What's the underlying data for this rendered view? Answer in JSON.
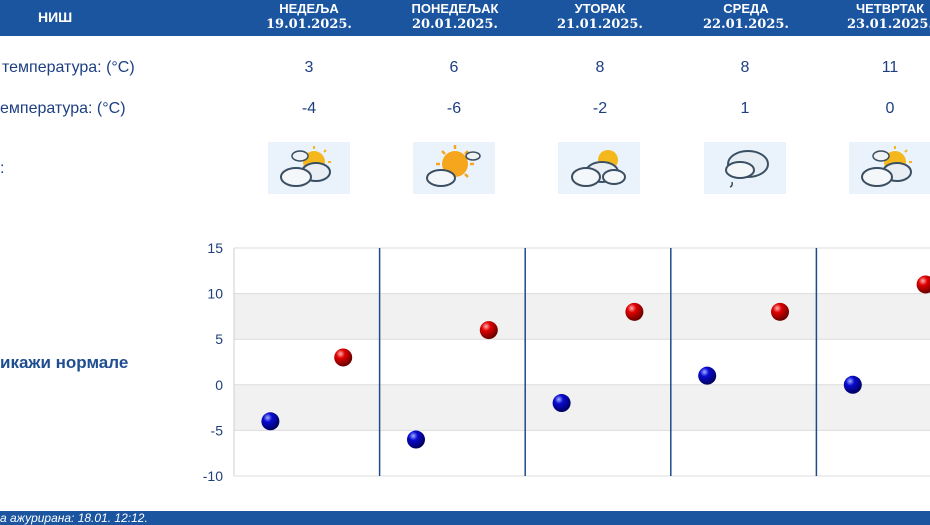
{
  "header": {
    "city": "НИШ",
    "days": [
      {
        "name": "НЕДЕЉА",
        "date": "19.01.2025."
      },
      {
        "name": "ПОНЕДЕЉАК",
        "date": "20.01.2025."
      },
      {
        "name": "УТОРАК",
        "date": "21.01.2025."
      },
      {
        "name": "СРЕДА",
        "date": "22.01.2025."
      },
      {
        "name": "ЧЕТВРТАК",
        "date": "23.01.2025."
      }
    ]
  },
  "rows": {
    "max_label": "температура: (°C)",
    "min_label": "емпература: (°C)",
    "icon_label": ":",
    "max_values": [
      "3",
      "6",
      "8",
      "8",
      "11"
    ],
    "min_values": [
      "-4",
      "-6",
      "-2",
      "1",
      "0"
    ],
    "icons": [
      "partly-cloudy-icon",
      "sunny-partly-cloudy-icon",
      "partly-cloudy-icon",
      "cloudy-light-rain-icon",
      "partly-cloudy-icon"
    ]
  },
  "normals_link": "икажи нормале",
  "footer": {
    "updated": "а ажурирана:  18.01.  12:12."
  },
  "chart_data": {
    "type": "scatter",
    "categories": [
      "НЕДЕЉА",
      "ПОНЕДЕЉАК",
      "УТОРАК",
      "СРЕДА",
      "ЧЕТВРТАК"
    ],
    "series": [
      {
        "values": [
          3,
          6,
          8,
          8,
          11
        ],
        "color": "#cc0000"
      },
      {
        "values": [
          -4,
          -6,
          -2,
          1,
          0
        ],
        "color": "#0000b0"
      }
    ],
    "ylim": [
      -10,
      15
    ],
    "yticks": [
      15,
      10,
      5,
      0,
      -5,
      -10
    ],
    "grid": true
  }
}
